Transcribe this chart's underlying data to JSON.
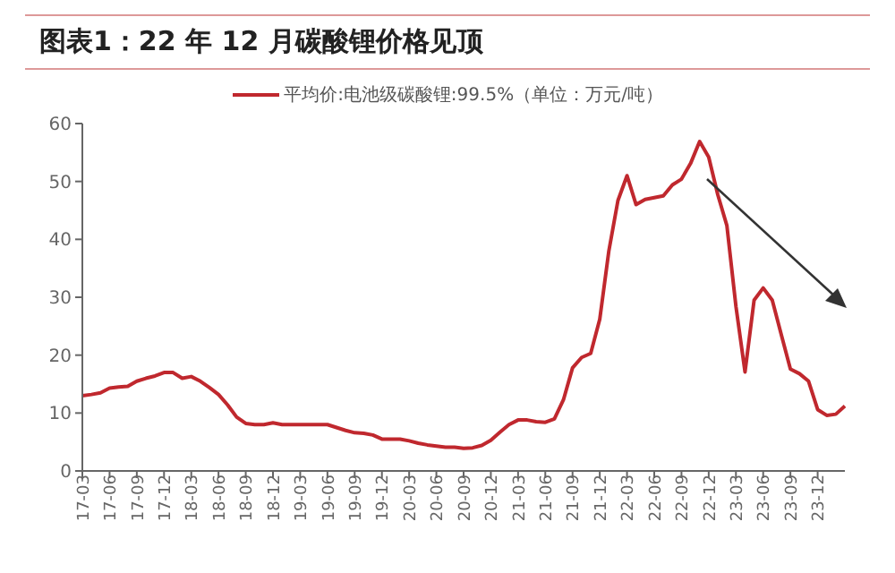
{
  "chart_data": {
    "type": "line",
    "title": "图表1：22 年 12 月碳酸锂价格见顶",
    "categories": [
      "17-03",
      null,
      null,
      "17-06",
      null,
      null,
      "17-09",
      null,
      null,
      "17-12",
      null,
      null,
      "18-03",
      null,
      null,
      "18-06",
      null,
      null,
      "18-09",
      null,
      null,
      "18-12",
      null,
      null,
      "19-03",
      null,
      null,
      "19-06",
      null,
      null,
      "19-09",
      null,
      null,
      "19-12",
      null,
      null,
      "20-03",
      null,
      null,
      "20-06",
      null,
      null,
      "20-09",
      null,
      null,
      "20-12",
      null,
      null,
      "21-03",
      null,
      null,
      "21-06",
      null,
      null,
      "21-09",
      null,
      null,
      "21-12",
      null,
      null,
      "22-03",
      null,
      null,
      "22-06",
      null,
      null,
      "22-09",
      null,
      null,
      "22-12",
      null,
      null,
      "23-03",
      null,
      null,
      "23-06",
      null,
      null,
      "23-09",
      null,
      null,
      "23-12",
      null,
      null,
      null
    ],
    "series": [
      {
        "name": "平均价:电池级碳酸锂:99.5%（单位：万元/吨）",
        "color": "#c0282e",
        "values": [
          13.0,
          13.2,
          13.5,
          14.3,
          14.5,
          14.6,
          15.5,
          16.0,
          16.4,
          17.0,
          17.0,
          16.0,
          16.3,
          15.5,
          14.4,
          13.2,
          11.4,
          9.3,
          8.2,
          8.0,
          8.0,
          8.3,
          8,
          8,
          8,
          8,
          8,
          8,
          7.5,
          7.0,
          6.6,
          6.5,
          6.2,
          5.5,
          5.5,
          5.5,
          5.2,
          4.8,
          4.5,
          4.3,
          4.1,
          4.1,
          3.9,
          4.0,
          4.4,
          5.3,
          6.7,
          8.0,
          8.8,
          8.8,
          8.5,
          8.4,
          9.0,
          12.3,
          17.8,
          19.6,
          20.3,
          26.2,
          38,
          46.7,
          51,
          46,
          46.9,
          47.2,
          47.5,
          49.4,
          50.4,
          53.1,
          56.9,
          54.2,
          47.7,
          42.4,
          28.4,
          17.1,
          29.5,
          31.6,
          29.5,
          23.5,
          17.6,
          16.8,
          15.5,
          10.6,
          9.6,
          9.8,
          11.2
        ]
      }
    ],
    "ylim": [
      0,
      60
    ],
    "yticks": [
      0,
      10,
      20,
      30,
      40,
      50,
      60
    ],
    "legend": "top",
    "marker": "none",
    "line_style": "solid"
  }
}
